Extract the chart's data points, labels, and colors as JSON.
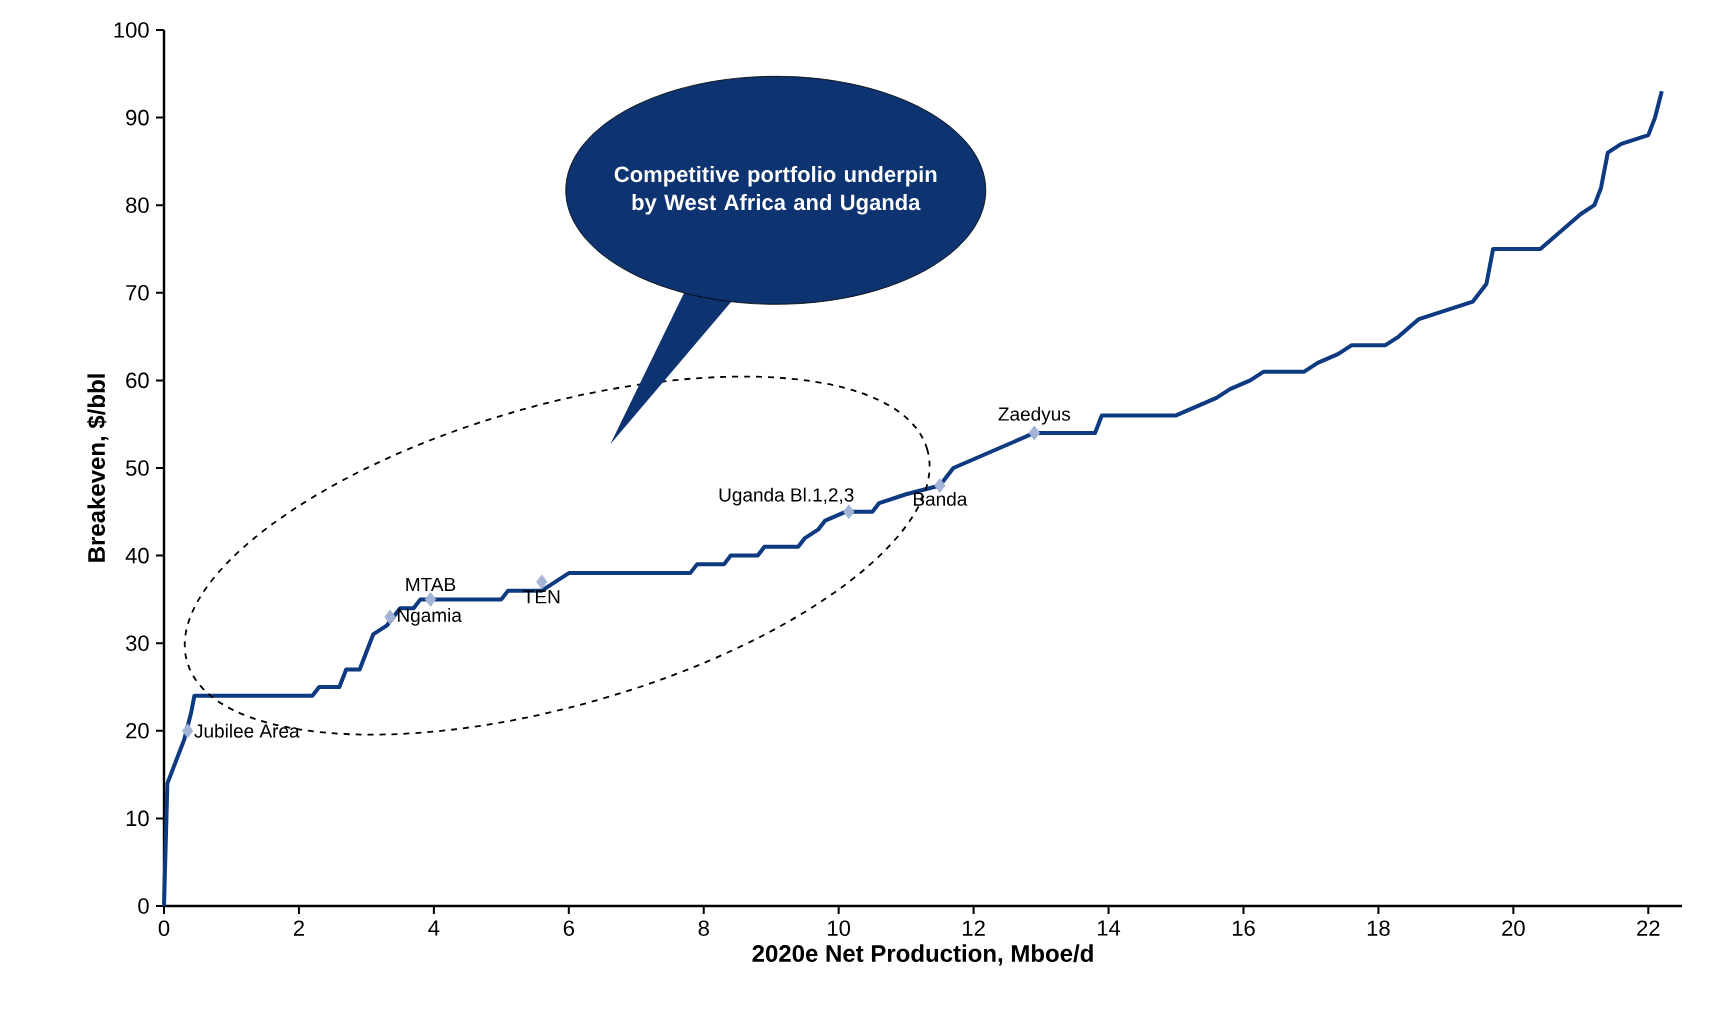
{
  "chart_data": {
    "type": "line",
    "xlabel": "2020e Net Production, Mboe/d",
    "ylabel": "Breakeven, $/bbl",
    "xlim": [
      0,
      22.5
    ],
    "ylim": [
      0,
      100
    ],
    "xticks": [
      0,
      2,
      4,
      6,
      8,
      10,
      12,
      14,
      16,
      18,
      20,
      22
    ],
    "yticks": [
      0,
      10,
      20,
      30,
      40,
      50,
      60,
      70,
      80,
      90,
      100
    ],
    "series": [
      {
        "color": "#0d3a80",
        "x": [
          0,
          0.05,
          0.3,
          0.4,
          0.45,
          2.2,
          2.3,
          2.6,
          2.7,
          2.9,
          3.0,
          3.1,
          3.3,
          3.5,
          3.7,
          3.8,
          4.0,
          5.0,
          5.1,
          5.6,
          6.0,
          7.8,
          7.9,
          8.3,
          8.4,
          8.8,
          8.9,
          9.4,
          9.5,
          9.7,
          9.8,
          10.1,
          10.5,
          10.6,
          11.0,
          11.5,
          11.7,
          12.0,
          12.3,
          12.6,
          12.9,
          13.8,
          13.9,
          15.0,
          15.3,
          15.6,
          15.8,
          16.1,
          16.3,
          16.9,
          17.1,
          17.4,
          17.6,
          18.1,
          18.3,
          18.6,
          19.0,
          19.4,
          19.6,
          19.7,
          20.4,
          20.7,
          21.0,
          21.2,
          21.3,
          21.4,
          21.6,
          22.0,
          22.1,
          22.2
        ],
        "values": [
          0,
          14,
          19,
          22,
          24,
          24,
          25,
          25,
          27,
          27,
          29,
          31,
          32,
          34,
          34,
          35,
          35,
          35,
          36,
          36,
          38,
          38,
          39,
          39,
          40,
          40,
          41,
          41,
          42,
          43,
          44,
          45,
          45,
          46,
          47,
          48,
          50,
          51,
          52,
          53,
          54,
          54,
          56,
          56,
          57,
          58,
          59,
          60,
          61,
          61,
          62,
          63,
          64,
          64,
          65,
          67,
          68,
          69,
          71,
          75,
          75,
          77,
          79,
          80,
          82,
          86,
          87,
          88,
          90,
          93
        ]
      },
      {
        "type": "scatter",
        "color": "#a3b4d6",
        "marker": "diamond",
        "x": [
          0.35,
          3.35,
          3.95,
          5.6,
          10.15,
          11.5,
          12.9
        ],
        "values": [
          20,
          33,
          35,
          37,
          45,
          48,
          54
        ]
      }
    ],
    "annotations": [
      {
        "text": "Jubilee Area",
        "x": 0.35,
        "y": 20
      },
      {
        "text": "Ngamia",
        "x": 3.35,
        "y": 33
      },
      {
        "text": "MTAB",
        "x": 3.95,
        "y": 35
      },
      {
        "text": "TEN",
        "x": 5.6,
        "y": 37
      },
      {
        "text": "Uganda Bl.1,2,3",
        "x": 10.15,
        "y": 45
      },
      {
        "text": "Banda",
        "x": 11.5,
        "y": 48
      },
      {
        "text": "Zaedyus",
        "x": 12.9,
        "y": 54
      },
      "Competitive portfolio underpin by West Africa and Uganda"
    ]
  }
}
